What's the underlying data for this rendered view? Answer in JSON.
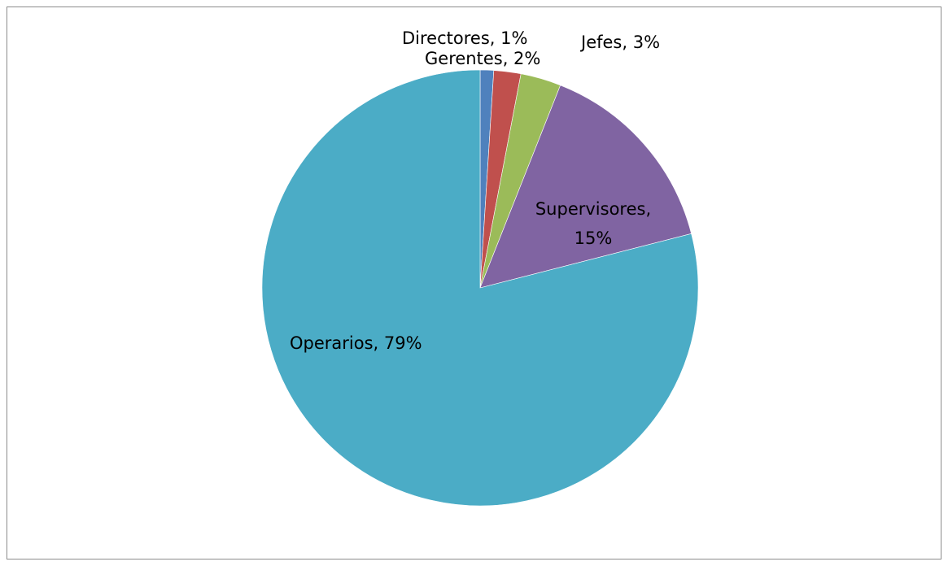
{
  "chart_data": {
    "type": "pie",
    "title": "",
    "slices": [
      {
        "name": "Directores",
        "value": 1,
        "label": "Directores, 1%",
        "color": "#4f81bd"
      },
      {
        "name": "Gerentes",
        "value": 2,
        "label": "Gerentes, 2%",
        "color": "#c0504d"
      },
      {
        "name": "Jefes",
        "value": 3,
        "label": "Jefes, 3%",
        "color": "#9bbb59"
      },
      {
        "name": "Supervisores",
        "value": 15,
        "label": "Supervisores, 15%",
        "label_lines": [
          "Supervisores,",
          "15%"
        ],
        "color": "#8064a2"
      },
      {
        "name": "Operarios",
        "value": 79,
        "label": "Operarios, 79%",
        "color": "#4bacc6"
      }
    ],
    "legend": "none",
    "data_labels": "category, percentage"
  }
}
